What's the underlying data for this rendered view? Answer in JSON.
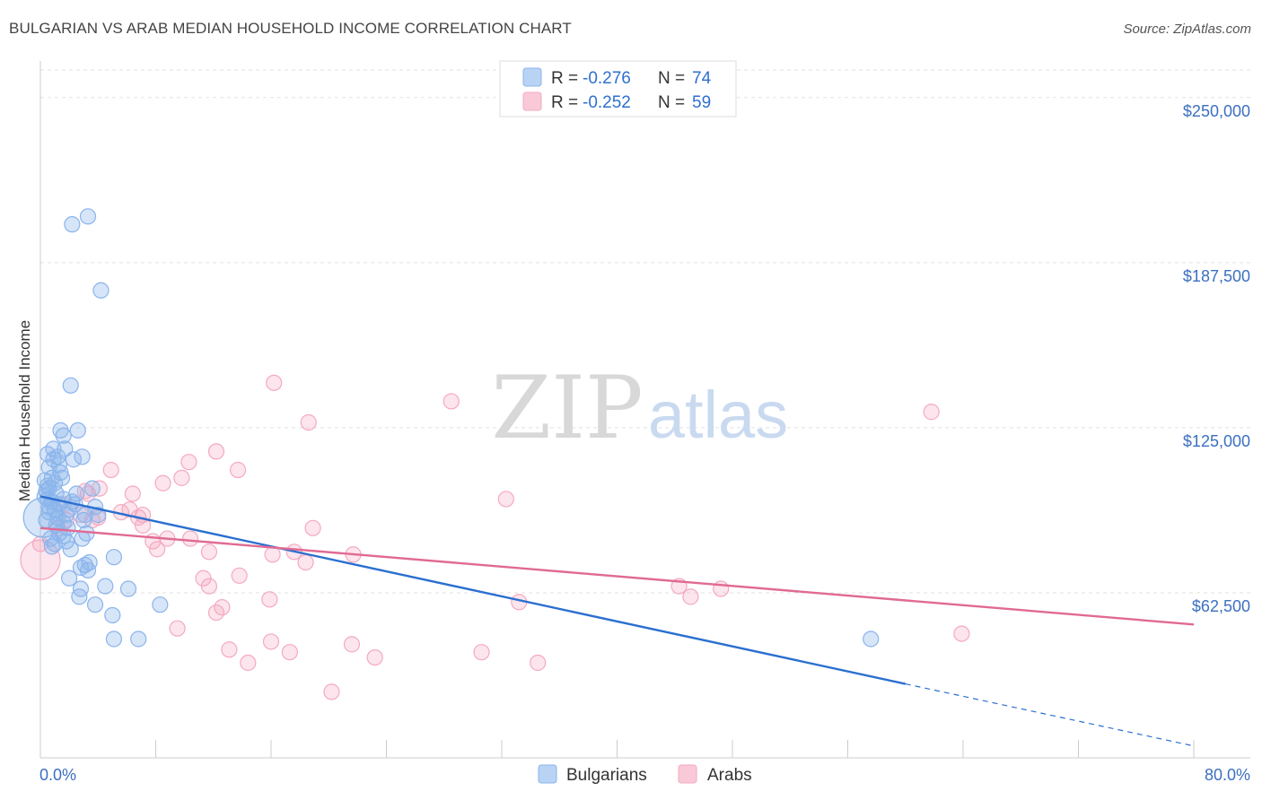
{
  "title": "BULGARIAN VS ARAB MEDIAN HOUSEHOLD INCOME CORRELATION CHART",
  "source": "Source: ZipAtlas.com",
  "watermark": {
    "zip": "ZIP",
    "atlas": "atlas"
  },
  "chart_data": {
    "type": "scatter",
    "ylabel": "Median Household Income",
    "xlim": [
      0,
      80
    ],
    "ylim": [
      0,
      262500
    ],
    "y_ticks": [
      {
        "value": 62500,
        "label": "$62,500"
      },
      {
        "value": 125000,
        "label": "$125,000"
      },
      {
        "value": 187500,
        "label": "$187,500"
      },
      {
        "value": 250000,
        "label": "$250,000"
      }
    ],
    "x_tick_labels": {
      "min": "0.0%",
      "max": "80.0%"
    },
    "series": [
      {
        "name": "Bulgarians",
        "color": "#8ab4ec",
        "line_color": "#2b6fd0",
        "R": "-0.276",
        "N": "74",
        "trend": {
          "x0": 0,
          "y0": 99000,
          "x1": 60,
          "y1": 28000,
          "dash_to_x": 80,
          "dash_to_y": 4500
        },
        "points": [
          [
            3.3,
            205000
          ],
          [
            2.2,
            202000
          ],
          [
            4.2,
            177000
          ],
          [
            2.1,
            141000
          ],
          [
            1.4,
            124000
          ],
          [
            2.6,
            124000
          ],
          [
            1.6,
            122000
          ],
          [
            1.7,
            117000
          ],
          [
            0.9,
            117000
          ],
          [
            0.5,
            115000
          ],
          [
            1.2,
            114000
          ],
          [
            2.9,
            114000
          ],
          [
            2.3,
            113000
          ],
          [
            1.3,
            111000
          ],
          [
            0.6,
            110000
          ],
          [
            1.4,
            108000
          ],
          [
            0.8,
            106000
          ],
          [
            0.3,
            105000
          ],
          [
            1.0,
            104000
          ],
          [
            0.5,
            103000
          ],
          [
            0.6,
            102000
          ],
          [
            3.6,
            102000
          ],
          [
            0.4,
            101000
          ],
          [
            1.1,
            100000
          ],
          [
            0.3,
            99000
          ],
          [
            1.6,
            98000
          ],
          [
            0.8,
            97000
          ],
          [
            2.2,
            97000
          ],
          [
            2.4,
            96000
          ],
          [
            1.3,
            96000
          ],
          [
            0.6,
            95000
          ],
          [
            3.8,
            95000
          ],
          [
            1.0,
            94000
          ],
          [
            0.6,
            93000
          ],
          [
            1.8,
            92000
          ],
          [
            3.1,
            92000
          ],
          [
            1.2,
            91000
          ],
          [
            0.4,
            90000
          ],
          [
            1.6,
            89000
          ],
          [
            1.3,
            85000
          ],
          [
            1.6,
            84000
          ],
          [
            3.2,
            85000
          ],
          [
            2.9,
            83000
          ],
          [
            1.8,
            82000
          ],
          [
            1.0,
            81000
          ],
          [
            0.8,
            80000
          ],
          [
            2.1,
            79000
          ],
          [
            5.1,
            76000
          ],
          [
            3.4,
            74000
          ],
          [
            3.1,
            73000
          ],
          [
            2.8,
            72000
          ],
          [
            3.3,
            71000
          ],
          [
            2.0,
            68000
          ],
          [
            4.5,
            65000
          ],
          [
            2.8,
            64000
          ],
          [
            6.1,
            64000
          ],
          [
            2.7,
            61000
          ],
          [
            3.8,
            58000
          ],
          [
            8.3,
            58000
          ],
          [
            5.0,
            54000
          ],
          [
            5.1,
            45000
          ],
          [
            6.8,
            45000
          ],
          [
            57.6,
            45000
          ],
          [
            0.5,
            98000
          ],
          [
            1.1,
            88000
          ],
          [
            2.0,
            94000
          ],
          [
            0.7,
            83000
          ],
          [
            2.5,
            100000
          ],
          [
            1.5,
            106000
          ],
          [
            0.9,
            113000
          ],
          [
            3.0,
            90000
          ],
          [
            0.2,
            91000
          ],
          [
            1.9,
            87000
          ],
          [
            4.0,
            92000
          ]
        ]
      },
      {
        "name": "Arabs",
        "color": "#f4a9c1",
        "line_color": "#e06a93",
        "R": "-0.252",
        "N": "59",
        "trend": {
          "x0": 0,
          "y0": 87000,
          "x1": 80,
          "y1": 50500
        },
        "points": [
          [
            16.2,
            142000
          ],
          [
            28.5,
            135000
          ],
          [
            61.8,
            131000
          ],
          [
            18.6,
            127000
          ],
          [
            12.2,
            116000
          ],
          [
            10.3,
            112000
          ],
          [
            13.7,
            109000
          ],
          [
            4.9,
            109000
          ],
          [
            9.8,
            106000
          ],
          [
            8.5,
            104000
          ],
          [
            4.1,
            102000
          ],
          [
            3.3,
            100000
          ],
          [
            6.4,
            100000
          ],
          [
            3.1,
            101000
          ],
          [
            32.3,
            98000
          ],
          [
            6.2,
            94000
          ],
          [
            1.6,
            96000
          ],
          [
            4.0,
            91000
          ],
          [
            3.6,
            90000
          ],
          [
            2.8,
            92000
          ],
          [
            5.6,
            93000
          ],
          [
            6.8,
            91000
          ],
          [
            7.1,
            92000
          ],
          [
            1.8,
            90000
          ],
          [
            18.9,
            87000
          ],
          [
            7.8,
            82000
          ],
          [
            8.1,
            79000
          ],
          [
            10.4,
            83000
          ],
          [
            8.8,
            83000
          ],
          [
            11.7,
            78000
          ],
          [
            17.6,
            78000
          ],
          [
            16.1,
            77000
          ],
          [
            21.7,
            77000
          ],
          [
            18.4,
            74000
          ],
          [
            11.3,
            68000
          ],
          [
            13.8,
            69000
          ],
          [
            11.7,
            65000
          ],
          [
            44.3,
            65000
          ],
          [
            47.2,
            64000
          ],
          [
            45.1,
            61000
          ],
          [
            15.9,
            60000
          ],
          [
            33.2,
            59000
          ],
          [
            12.6,
            57000
          ],
          [
            12.2,
            55000
          ],
          [
            9.5,
            49000
          ],
          [
            63.9,
            47000
          ],
          [
            13.1,
            41000
          ],
          [
            16.0,
            44000
          ],
          [
            21.6,
            43000
          ],
          [
            17.3,
            40000
          ],
          [
            30.6,
            40000
          ],
          [
            23.2,
            38000
          ],
          [
            14.4,
            36000
          ],
          [
            34.5,
            36000
          ],
          [
            20.2,
            25000
          ],
          [
            0.0,
            75000
          ],
          [
            0.0,
            81000
          ],
          [
            1.2,
            87000
          ],
          [
            7.1,
            88000
          ]
        ]
      }
    ]
  }
}
